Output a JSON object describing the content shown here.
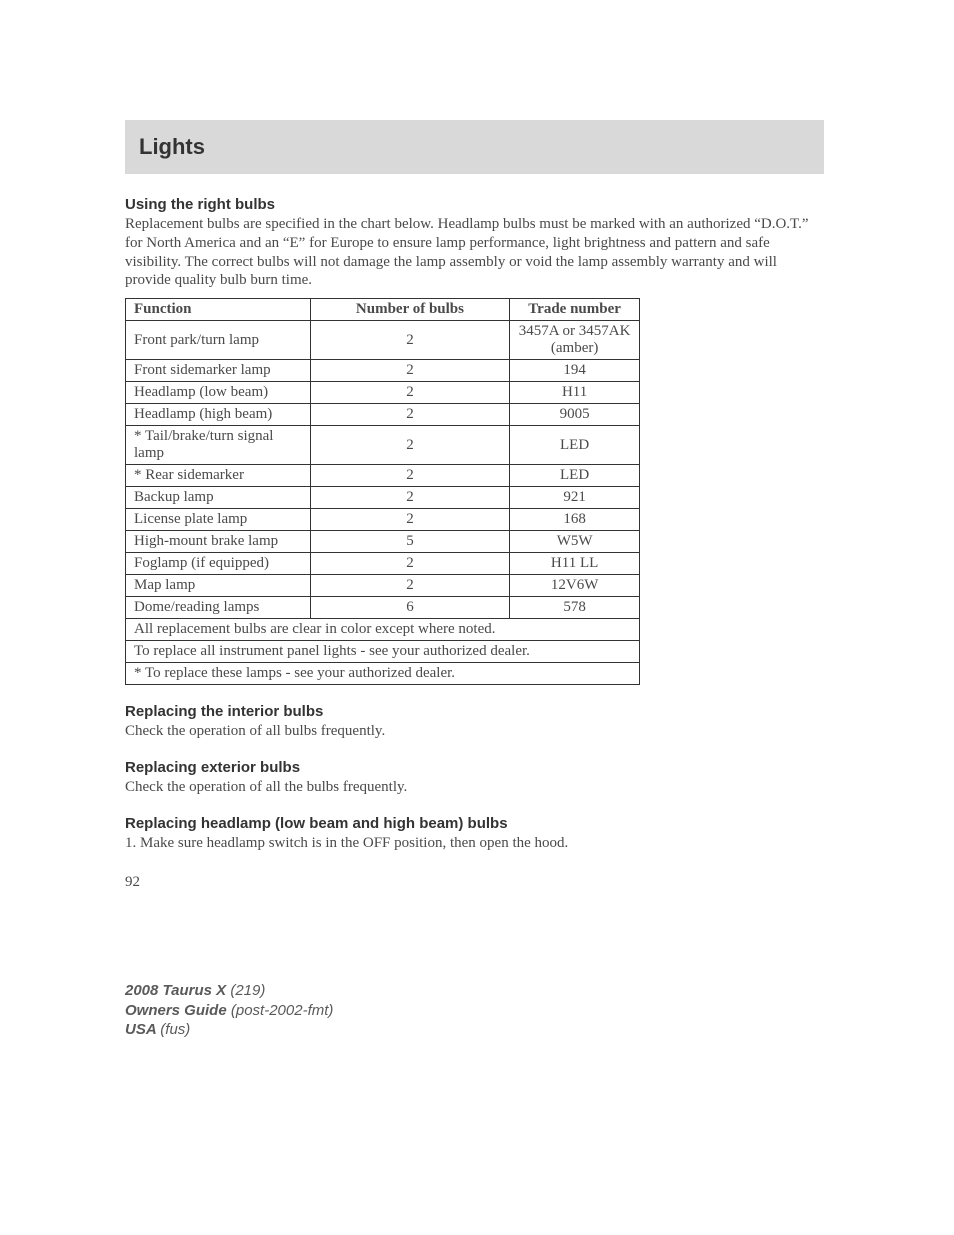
{
  "header": {
    "title": "Lights"
  },
  "sections": {
    "intro": {
      "heading": "Using the right bulbs",
      "text": "Replacement bulbs are specified in the chart below. Headlamp bulbs must be marked with an authorized “D.O.T.” for North America and an “E” for Europe to ensure lamp performance, light brightness and pattern and safe visibility. The correct bulbs will not damage the lamp assembly or void the lamp assembly warranty and will provide quality bulb burn time."
    },
    "interior": {
      "heading": "Replacing the interior bulbs",
      "text": "Check the operation of all bulbs frequently."
    },
    "exterior": {
      "heading": "Replacing exterior bulbs",
      "text": "Check the operation of all the bulbs frequently."
    },
    "headlamp": {
      "heading": "Replacing headlamp (low beam and high beam) bulbs",
      "text": "1. Make sure headlamp switch is in the OFF position, then open the hood."
    }
  },
  "table": {
    "columns": [
      "Function",
      "Number of bulbs",
      "Trade number"
    ],
    "column_widths": [
      "185px",
      "200px",
      "130px"
    ],
    "rows": [
      {
        "func": "Front park/turn lamp",
        "num": "2",
        "trade": "3457A or 3457AK (amber)"
      },
      {
        "func": "Front sidemarker lamp",
        "num": "2",
        "trade": "194"
      },
      {
        "func": "Headlamp (low beam)",
        "num": "2",
        "trade": "H11"
      },
      {
        "func": "Headlamp (high beam)",
        "num": "2",
        "trade": "9005"
      },
      {
        "func": "* Tail/brake/turn signal lamp",
        "num": "2",
        "trade": "LED"
      },
      {
        "func": "* Rear sidemarker",
        "num": "2",
        "trade": "LED"
      },
      {
        "func": "Backup lamp",
        "num": "2",
        "trade": "921"
      },
      {
        "func": "License plate lamp",
        "num": "2",
        "trade": "168"
      },
      {
        "func": "High-mount brake lamp",
        "num": "5",
        "trade": "W5W"
      },
      {
        "func": "Foglamp (if equipped)",
        "num": "2",
        "trade": "H11 LL"
      },
      {
        "func": "Map lamp",
        "num": "2",
        "trade": "12V6W"
      },
      {
        "func": "Dome/reading lamps",
        "num": "6",
        "trade": "578"
      }
    ],
    "notes": [
      "All replacement bulbs are clear in color except where noted.",
      "To replace all instrument panel lights - see your authorized dealer.",
      "* To replace these lamps - see your authorized dealer."
    ]
  },
  "page_number": "92",
  "footer": {
    "line1_bold": "2008 Taurus X ",
    "line1_italic": "(219)",
    "line2_bold": "Owners Guide ",
    "line2_italic": "(post-2002-fmt)",
    "line3_bold": "USA ",
    "line3_italic": "(fus)"
  }
}
